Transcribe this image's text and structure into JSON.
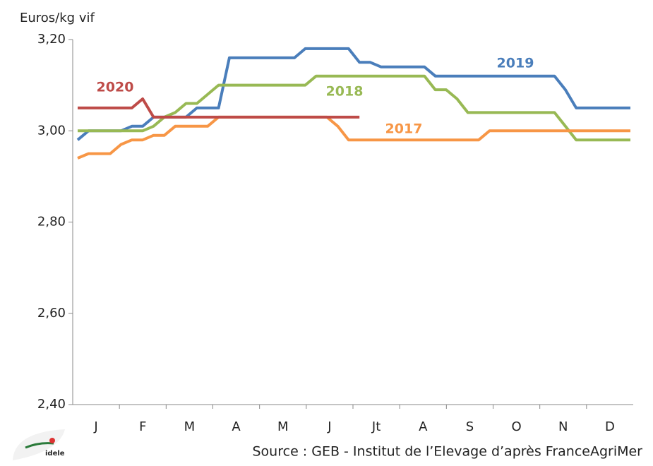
{
  "chart_data": {
    "type": "line",
    "ylabel": "Euros/kg vif",
    "source": "Source : GEB - Institut de l’Elevage d’après FranceAgriMer",
    "logo": "idele",
    "months": [
      "J",
      "F",
      "M",
      "A",
      "M",
      "J",
      "Jt",
      "A",
      "S",
      "O",
      "N",
      "D"
    ],
    "ylim": [
      2.4,
      3.2
    ],
    "yticks": [
      {
        "value": 2.4,
        "label": "2,40"
      },
      {
        "value": 2.6,
        "label": "2,60"
      },
      {
        "value": 2.8,
        "label": "2,80"
      },
      {
        "value": 3.0,
        "label": "3,00"
      },
      {
        "value": 3.2,
        "label": "3,20"
      }
    ],
    "series": [
      {
        "name": "2019",
        "color": "#4a7ebb",
        "values": [
          2.98,
          3.0,
          3.0,
          3.0,
          3.0,
          3.01,
          3.01,
          3.03,
          3.03,
          3.03,
          3.03,
          3.05,
          3.05,
          3.05,
          3.16,
          3.16,
          3.16,
          3.16,
          3.16,
          3.16,
          3.16,
          3.18,
          3.18,
          3.18,
          3.18,
          3.18,
          3.15,
          3.15,
          3.14,
          3.14,
          3.14,
          3.14,
          3.14,
          3.12,
          3.12,
          3.12,
          3.12,
          3.12,
          3.12,
          3.12,
          3.12,
          3.12,
          3.12,
          3.12,
          3.12,
          3.09,
          3.05,
          3.05,
          3.05,
          3.05,
          3.05,
          3.05
        ]
      },
      {
        "name": "2018",
        "color": "#98b954",
        "values": [
          3.0,
          3.0,
          3.0,
          3.0,
          3.0,
          3.0,
          3.0,
          3.01,
          3.03,
          3.04,
          3.06,
          3.06,
          3.08,
          3.1,
          3.1,
          3.1,
          3.1,
          3.1,
          3.1,
          3.1,
          3.1,
          3.1,
          3.12,
          3.12,
          3.12,
          3.12,
          3.12,
          3.12,
          3.12,
          3.12,
          3.12,
          3.12,
          3.12,
          3.09,
          3.09,
          3.07,
          3.04,
          3.04,
          3.04,
          3.04,
          3.04,
          3.04,
          3.04,
          3.04,
          3.04,
          3.01,
          2.98,
          2.98,
          2.98,
          2.98,
          2.98,
          2.98
        ]
      },
      {
        "name": "2017",
        "color": "#f79646",
        "values": [
          2.94,
          2.95,
          2.95,
          2.95,
          2.97,
          2.98,
          2.98,
          2.99,
          2.99,
          3.01,
          3.01,
          3.01,
          3.01,
          3.03,
          3.03,
          3.03,
          3.03,
          3.03,
          3.03,
          3.03,
          3.03,
          3.03,
          3.03,
          3.03,
          3.01,
          2.98,
          2.98,
          2.98,
          2.98,
          2.98,
          2.98,
          2.98,
          2.98,
          2.98,
          2.98,
          2.98,
          2.98,
          2.98,
          3.0,
          3.0,
          3.0,
          3.0,
          3.0,
          3.0,
          3.0,
          3.0,
          3.0,
          3.0,
          3.0,
          3.0,
          3.0,
          3.0
        ]
      },
      {
        "name": "2020",
        "color": "#be4b48",
        "values": [
          3.05,
          3.05,
          3.05,
          3.05,
          3.05,
          3.05,
          3.07,
          3.03,
          3.03,
          3.03,
          3.03,
          3.03,
          3.03,
          3.03,
          3.03,
          3.03,
          3.03,
          3.03,
          3.03,
          3.03,
          3.03,
          3.03,
          3.03,
          3.03,
          3.03,
          3.03,
          3.03,
          null,
          null,
          null,
          null,
          null,
          null,
          null,
          null,
          null,
          null,
          null,
          null,
          null,
          null,
          null,
          null,
          null,
          null,
          null,
          null,
          null,
          null,
          null,
          null,
          null
        ]
      }
    ]
  }
}
